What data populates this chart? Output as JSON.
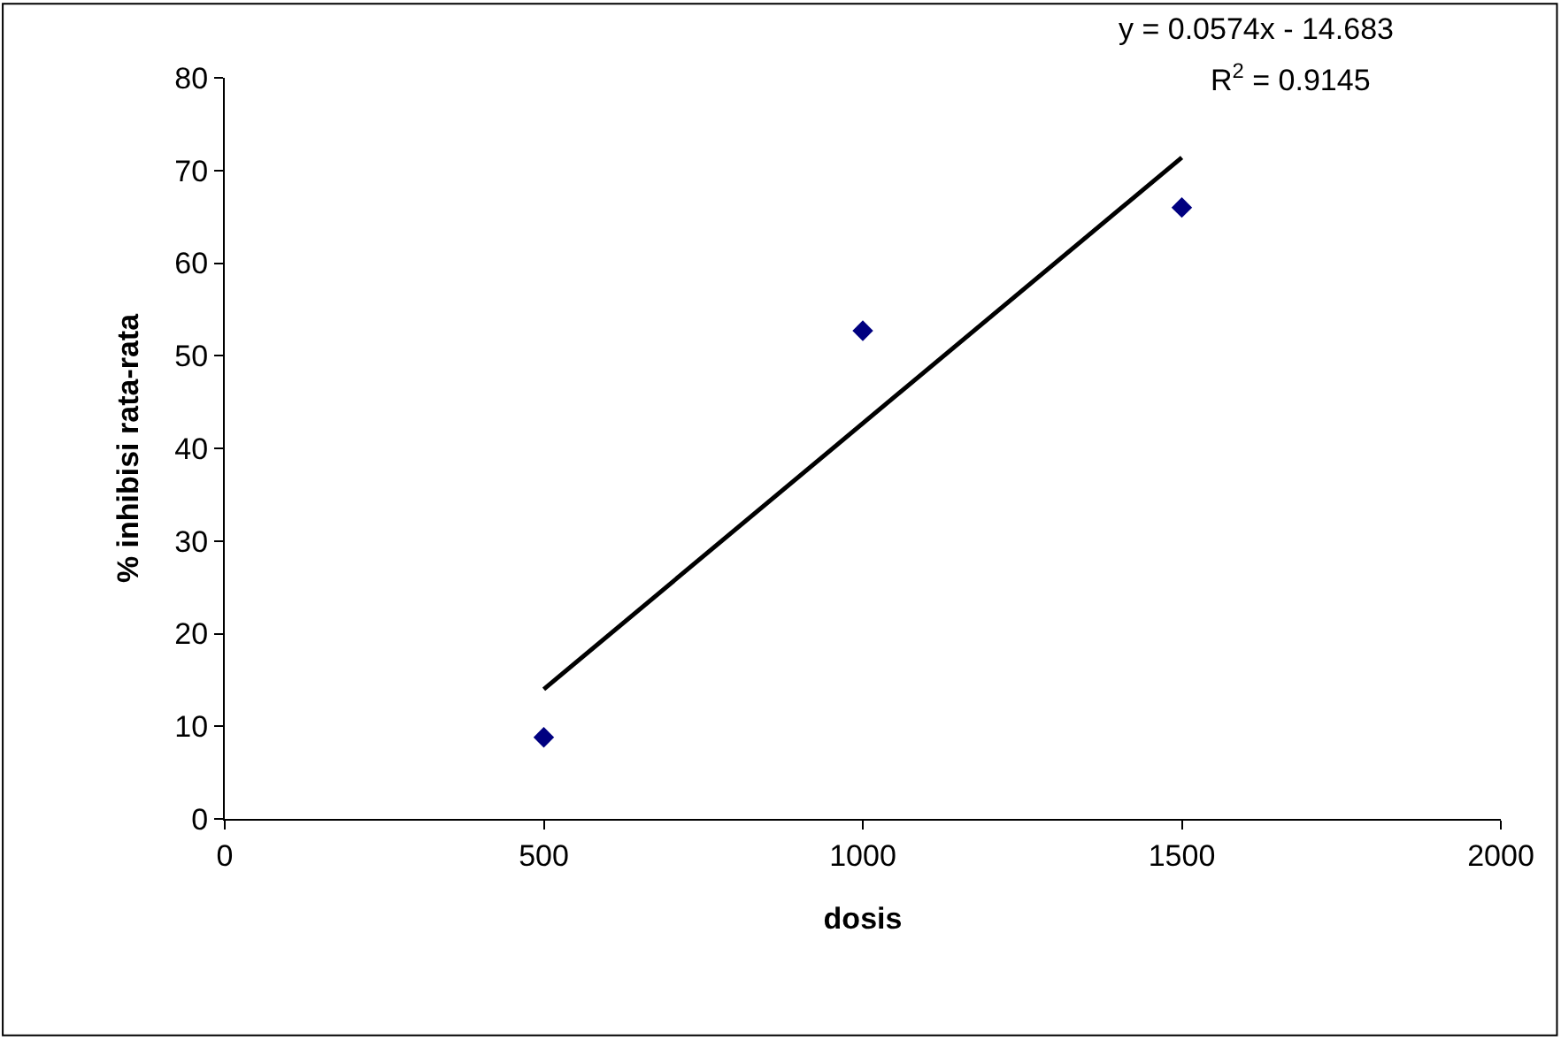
{
  "chart_data": {
    "type": "scatter",
    "xlabel": "dosis",
    "ylabel": "% inhibisi rata-rata",
    "annotations": [
      "y = 0.0574x - 14.683",
      "R$^{2}$ = 0.9145"
    ],
    "series": [
      {
        "color": "#000080",
        "x": [
          500,
          1000,
          1500
        ],
        "values": [
          8.8,
          52.7,
          66.0
        ],
        "marker": "diamond"
      },
      {
        "type": "line",
        "color": "#000000",
        "x": [
          500,
          1500
        ],
        "values": [
          14.0,
          71.4
        ],
        "marker": "none",
        "line_style": "solid"
      }
    ],
    "xlim": [
      0,
      2000
    ],
    "xticks": [
      0,
      500,
      1000,
      1500,
      2000
    ],
    "ylim": [
      0,
      80
    ],
    "yticks": [
      0,
      10,
      20,
      30,
      40,
      50,
      60,
      70,
      80
    ]
  }
}
